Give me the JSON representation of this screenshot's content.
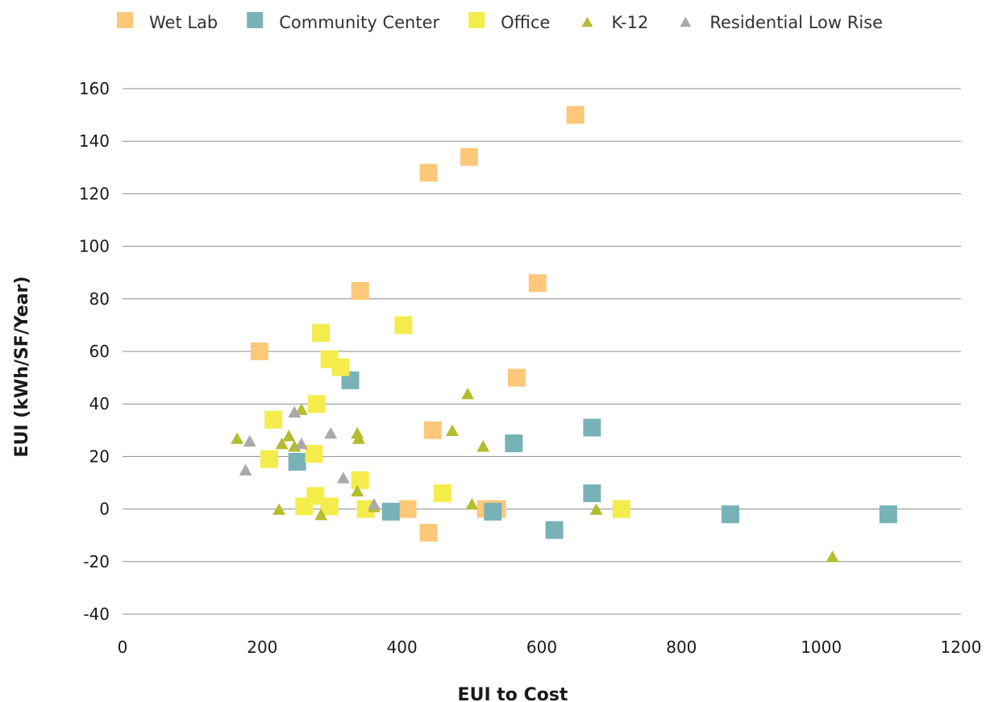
{
  "chart_data": {
    "type": "scatter",
    "xlabel": "EUI to Cost",
    "ylabel": "EUI (kWh/SF/Year)",
    "xlim": [
      0,
      1200
    ],
    "ylim": [
      -40,
      160
    ],
    "xticks": [
      0,
      200,
      400,
      600,
      800,
      1000,
      1200
    ],
    "yticks": [
      -40,
      -20,
      0,
      20,
      40,
      60,
      80,
      100,
      120,
      140,
      160
    ],
    "xtick_labels": [
      "0",
      "200",
      "400",
      "600",
      "800",
      "1000",
      "1200"
    ],
    "ytick_labels": [
      "-40",
      "-20",
      "0",
      "20",
      "40",
      "60",
      "80",
      "100",
      "120",
      "140",
      "160"
    ],
    "grid": "horizontal",
    "legend_position": "top",
    "series": [
      {
        "name": "Wet Lab",
        "marker": "square",
        "color": "#FDC87A",
        "points": [
          [
            648,
            150
          ],
          [
            496,
            134
          ],
          [
            438,
            128
          ],
          [
            594,
            86
          ],
          [
            340,
            83
          ],
          [
            196,
            60
          ],
          [
            564,
            50
          ],
          [
            444,
            30
          ],
          [
            408,
            0
          ],
          [
            520,
            0
          ],
          [
            536,
            0
          ],
          [
            438,
            -9
          ]
        ]
      },
      {
        "name": "Community Center",
        "marker": "square",
        "color": "#77B2B7",
        "points": [
          [
            326,
            49
          ],
          [
            250,
            18
          ],
          [
            384,
            -1
          ],
          [
            530,
            -1
          ],
          [
            560,
            25
          ],
          [
            672,
            31
          ],
          [
            672,
            6
          ],
          [
            618,
            -8
          ],
          [
            870,
            -2
          ],
          [
            1096,
            -2
          ]
        ]
      },
      {
        "name": "Office",
        "marker": "square",
        "color": "#F4EC4A",
        "points": [
          [
            284,
            67
          ],
          [
            296,
            57
          ],
          [
            312,
            54
          ],
          [
            402,
            70
          ],
          [
            278,
            40
          ],
          [
            216,
            34
          ],
          [
            210,
            19
          ],
          [
            274,
            21
          ],
          [
            340,
            11
          ],
          [
            276,
            5
          ],
          [
            260,
            1
          ],
          [
            296,
            1
          ],
          [
            348,
            0
          ],
          [
            458,
            6
          ],
          [
            714,
            0
          ]
        ]
      },
      {
        "name": "K-12",
        "marker": "triangle",
        "color": "#B5BC2E",
        "points": [
          [
            164,
            27
          ],
          [
            224,
            0
          ],
          [
            228,
            25
          ],
          [
            238,
            28
          ],
          [
            246,
            24
          ],
          [
            256,
            38
          ],
          [
            284,
            -2
          ],
          [
            336,
            29
          ],
          [
            338,
            27
          ],
          [
            336,
            7
          ],
          [
            360,
            1
          ],
          [
            472,
            30
          ],
          [
            494,
            44
          ],
          [
            500,
            2
          ],
          [
            516,
            24
          ],
          [
            678,
            0
          ],
          [
            1016,
            -18
          ]
        ]
      },
      {
        "name": "Residential Low Rise",
        "marker": "triangle",
        "color": "#AAAAAA",
        "points": [
          [
            176,
            15
          ],
          [
            182,
            26
          ],
          [
            246,
            37
          ],
          [
            256,
            25
          ],
          [
            298,
            29
          ],
          [
            316,
            12
          ],
          [
            360,
            2
          ]
        ]
      }
    ]
  }
}
